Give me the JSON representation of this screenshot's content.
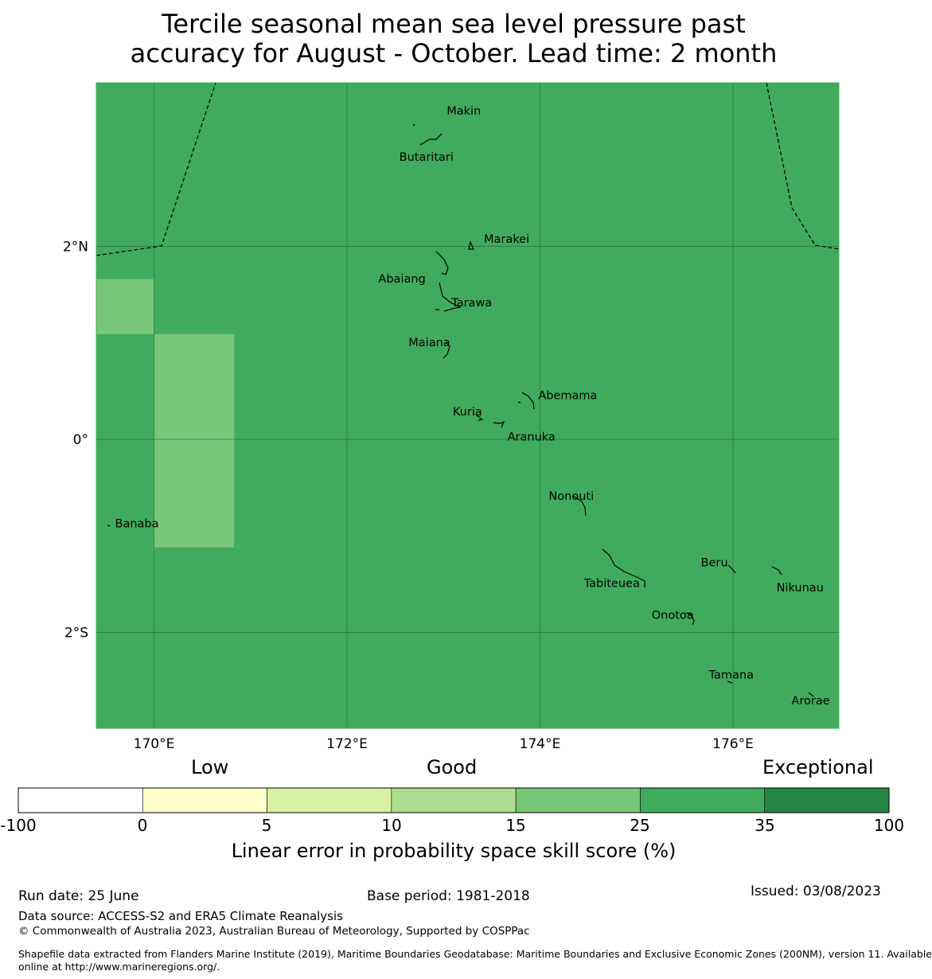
{
  "title": "Tercile seasonal mean sea level pressure past\naccuracy for August - October. Lead time: 2 month",
  "map": {
    "background_color": "#41ab5d",
    "lat_ticks": [
      {
        "value": 2,
        "label": "2°N"
      },
      {
        "value": 0,
        "label": "0°"
      },
      {
        "value": -2,
        "label": "2°S"
      }
    ],
    "lon_ticks": [
      {
        "value": 170,
        "label": "170°E"
      },
      {
        "value": 172,
        "label": "172°E"
      },
      {
        "value": 174,
        "label": "174°E"
      },
      {
        "value": 176,
        "label": "176°E"
      }
    ],
    "lower_skill_cells": [
      {
        "lon_range": [
          169.4,
          170.0
        ],
        "lat_range": [
          1.09,
          1.66
        ],
        "category": "15-25",
        "color": "#78c679"
      },
      {
        "lon_range": [
          170.0,
          170.83
        ],
        "lat_range": [
          -1.12,
          1.09
        ],
        "category": "15-25",
        "color": "#78c679"
      }
    ],
    "islands": [
      {
        "name": "Makin",
        "lon": 173.0,
        "lat": 3.35
      },
      {
        "name": "Butaritari",
        "lon": 172.79,
        "lat": 3.15
      },
      {
        "name": "Marakei",
        "lon": 173.27,
        "lat": 2.02
      },
      {
        "name": "Abaiang",
        "lon": 172.93,
        "lat": 1.84
      },
      {
        "name": "Tarawa",
        "lon": 173.0,
        "lat": 1.42
      },
      {
        "name": "Maiana",
        "lon": 173.02,
        "lat": 0.95
      },
      {
        "name": "Abemama",
        "lon": 173.85,
        "lat": 0.4
      },
      {
        "name": "Kuria",
        "lon": 173.4,
        "lat": 0.23
      },
      {
        "name": "Aranuka",
        "lon": 173.63,
        "lat": 0.17
      },
      {
        "name": "Nonouti",
        "lon": 174.42,
        "lat": -0.65
      },
      {
        "name": "Banaba",
        "lon": 169.53,
        "lat": -0.87
      },
      {
        "name": "Tabiteuea",
        "lon": 174.86,
        "lat": -1.35
      },
      {
        "name": "Beru",
        "lon": 175.98,
        "lat": -1.33
      },
      {
        "name": "Nikunau",
        "lon": 176.45,
        "lat": -1.37
      },
      {
        "name": "Onotoa",
        "lon": 175.56,
        "lat": -1.86
      },
      {
        "name": "Tamana",
        "lon": 175.99,
        "lat": -2.51
      },
      {
        "name": "Arorae",
        "lon": 176.82,
        "lat": -2.63
      }
    ]
  },
  "colorbar": {
    "categories": [
      "Low",
      "Good",
      "Exceptional"
    ],
    "bounds": [
      "-100",
      "0",
      "5",
      "10",
      "15",
      "25",
      "35",
      "100"
    ],
    "colors": [
      "#ffffff",
      "#ffffcc",
      "#d9f0a3",
      "#addd8e",
      "#78c679",
      "#41ab5d",
      "#238443"
    ],
    "label": "Linear error in probability space skill score (%)"
  },
  "footer": {
    "run_date": "Run date: 25 June",
    "base_period": "Base period: 1981-2018",
    "issued": "Issued: 03/08/2023",
    "data_source": "Data source: ACCESS-S2 and ERA5 Climate Reanalysis",
    "copyright": "© Commonwealth of Australia 2023, Australian Bureau of Meteorology, Supported by COSPPac",
    "shapefile_line1": "Shapefile data extracted from Flanders Marine Institute (2019), Maritime Boundaries Geodatabase: Maritime Boundaries and Exclusive Economic Zones (200NM), version 11. Available",
    "shapefile_line2": "online at http://www.marineregions.org/."
  }
}
